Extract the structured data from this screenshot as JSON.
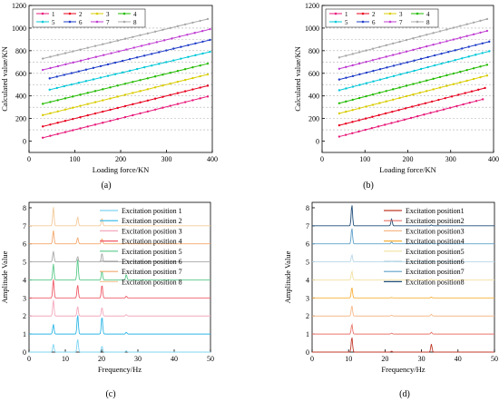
{
  "panels": [
    {
      "label": "(a)"
    },
    {
      "label": "(b)"
    },
    {
      "label": "(c)"
    },
    {
      "label": "(d)"
    }
  ],
  "chart_data": [
    {
      "type": "line",
      "panel": "(a)",
      "xlabel": "Loading force/KN",
      "ylabel": "Calculated value/KN",
      "xlim": [
        0,
        400
      ],
      "ylim": [
        -100,
        1200
      ],
      "xticks": [
        0,
        100,
        200,
        300,
        400
      ],
      "yticks": [
        0,
        200,
        400,
        600,
        800,
        1000,
        1200
      ],
      "legend_position": "top-left",
      "dashed_reference_lines": [
        100,
        200,
        300,
        400,
        500,
        600,
        700,
        800,
        900,
        1000
      ],
      "series": [
        {
          "name": "1",
          "color": "#e8197a",
          "x": [
            30,
            390
          ],
          "y": [
            30,
            395
          ]
        },
        {
          "name": "2",
          "color": "#e8001e",
          "x": [
            30,
            390
          ],
          "y": [
            130,
            490
          ]
        },
        {
          "name": "3",
          "color": "#d9cc00",
          "x": [
            30,
            390
          ],
          "y": [
            230,
            590
          ]
        },
        {
          "name": "4",
          "color": "#22bb00",
          "x": [
            30,
            390
          ],
          "y": [
            330,
            685
          ]
        },
        {
          "name": "5",
          "color": "#00c8d8",
          "x": [
            45,
            395
          ],
          "y": [
            455,
            790
          ]
        },
        {
          "name": "6",
          "color": "#1e3cc8",
          "x": [
            45,
            395
          ],
          "y": [
            555,
            895
          ]
        },
        {
          "name": "7",
          "color": "#c03cd2",
          "x": [
            30,
            395
          ],
          "y": [
            630,
            990
          ]
        },
        {
          "name": "8",
          "color": "#a8a8a8",
          "x": [
            30,
            390
          ],
          "y": [
            730,
            1080
          ]
        }
      ]
    },
    {
      "type": "line",
      "panel": "(b)",
      "xlabel": "Loading force/KN",
      "ylabel": "Calculated value/KN",
      "xlim": [
        0,
        400
      ],
      "ylim": [
        -100,
        1200
      ],
      "xticks": [
        0,
        100,
        200,
        300,
        400
      ],
      "yticks": [
        0,
        200,
        400,
        600,
        800,
        1000,
        1200
      ],
      "legend_position": "top-left",
      "dashed_reference_lines": [
        100,
        200,
        300,
        400,
        500,
        600,
        700,
        800,
        900,
        1000
      ],
      "series": [
        {
          "name": "1",
          "color": "#e8197a",
          "x": [
            40,
            375
          ],
          "y": [
            40,
            370
          ]
        },
        {
          "name": "2",
          "color": "#e8001e",
          "x": [
            40,
            380
          ],
          "y": [
            140,
            470
          ]
        },
        {
          "name": "3",
          "color": "#d9cc00",
          "x": [
            40,
            385
          ],
          "y": [
            245,
            580
          ]
        },
        {
          "name": "4",
          "color": "#22bb00",
          "x": [
            40,
            385
          ],
          "y": [
            335,
            675
          ]
        },
        {
          "name": "5",
          "color": "#00c8d8",
          "x": [
            40,
            390
          ],
          "y": [
            450,
            795
          ]
        },
        {
          "name": "6",
          "color": "#1e3cc8",
          "x": [
            40,
            390
          ],
          "y": [
            545,
            880
          ]
        },
        {
          "name": "7",
          "color": "#c03cd2",
          "x": [
            40,
            385
          ],
          "y": [
            640,
            975
          ]
        },
        {
          "name": "8",
          "color": "#a8a8a8",
          "x": [
            40,
            385
          ],
          "y": [
            740,
            1080
          ]
        }
      ]
    },
    {
      "type": "line",
      "panel": "(c)",
      "xlabel": "Frequency/Hz",
      "ylabel": "Amplitude Value",
      "xlim": [
        0,
        50
      ],
      "ylim": [
        0,
        8.3
      ],
      "xticks": [
        0,
        10,
        20,
        30,
        40,
        50
      ],
      "yticks": [
        0,
        1,
        2,
        3,
        4,
        5,
        6,
        7,
        8
      ],
      "legend_position": "top-right",
      "peaks_hz": [
        6.7,
        13.4,
        20.1,
        26.8
      ],
      "series": [
        {
          "name": "Excitation position 1",
          "color": "#7fd4f2",
          "baseline": 0,
          "peak_heights": [
            0.45,
            0.75,
            0.35,
            0.08
          ]
        },
        {
          "name": "Excitation position 2",
          "color": "#2eb6e6",
          "baseline": 1,
          "peak_heights": [
            0.55,
            1.1,
            1.0,
            0.1
          ]
        },
        {
          "name": "Excitation position 3",
          "color": "#f4a8bc",
          "baseline": 2,
          "peak_heights": [
            0.9,
            0.55,
            0.5,
            0.08
          ]
        },
        {
          "name": "Excitation position 4",
          "color": "#ef5a66",
          "baseline": 3,
          "peak_heights": [
            1.05,
            0.75,
            0.75,
            0.1
          ]
        },
        {
          "name": "Excitation position 5",
          "color": "#58c98a",
          "baseline": 4,
          "peak_heights": [
            0.9,
            1.2,
            0.5,
            0.3
          ]
        },
        {
          "name": "Excitation position 6",
          "color": "#a8a8a8",
          "baseline": 5,
          "peak_heights": [
            0.6,
            0.3,
            0.5,
            0.1
          ]
        },
        {
          "name": "Excitation position 7",
          "color": "#f3a86e",
          "baseline": 6,
          "peak_heights": [
            0.75,
            0.35,
            0.3,
            0.05
          ]
        },
        {
          "name": "Excitation position 8",
          "color": "#f3c99a",
          "baseline": 7,
          "peak_heights": [
            1.05,
            0.5,
            0.45,
            0.05
          ]
        }
      ]
    },
    {
      "type": "line",
      "panel": "(d)",
      "xlabel": "Frequency/Hz",
      "ylabel": "Amplitude Value",
      "xlim": [
        0,
        50
      ],
      "ylim": [
        0,
        8.3
      ],
      "xticks": [
        0,
        10,
        20,
        30,
        40,
        50
      ],
      "yticks": [
        0,
        1,
        2,
        3,
        4,
        5,
        6,
        7,
        8
      ],
      "legend_position": "top-right",
      "peaks_hz": [
        10.9,
        21.8,
        32.7
      ],
      "series": [
        {
          "name": "Excitation position1",
          "color": "#c0392b",
          "baseline": 0,
          "peak_heights": [
            0.85,
            0.05,
            0.45
          ]
        },
        {
          "name": "Excitation position2",
          "color": "#e8736a",
          "baseline": 1,
          "peak_heights": [
            0.55,
            0.05,
            0.1
          ]
        },
        {
          "name": "Excitation position3",
          "color": "#f7b98a",
          "baseline": 2,
          "peak_heights": [
            0.6,
            0.05,
            0.1
          ]
        },
        {
          "name": "Excitation position4",
          "color": "#f5b03a",
          "baseline": 3,
          "peak_heights": [
            0.6,
            0.03,
            0.05
          ]
        },
        {
          "name": "Excitation position5",
          "color": "#f2e0a0",
          "baseline": 4,
          "peak_heights": [
            0.5,
            0.03,
            0.05
          ]
        },
        {
          "name": "Excitation position6",
          "color": "#b8d8e8",
          "baseline": 5,
          "peak_heights": [
            0.4,
            0.03,
            0.05
          ]
        },
        {
          "name": "Excitation position7",
          "color": "#5fa0c8",
          "baseline": 6,
          "peak_heights": [
            0.9,
            0.1,
            0.05
          ]
        },
        {
          "name": "Excitation position8",
          "color": "#1f4e79",
          "baseline": 7,
          "peak_heights": [
            1.2,
            0.4,
            0.05
          ]
        }
      ]
    }
  ]
}
